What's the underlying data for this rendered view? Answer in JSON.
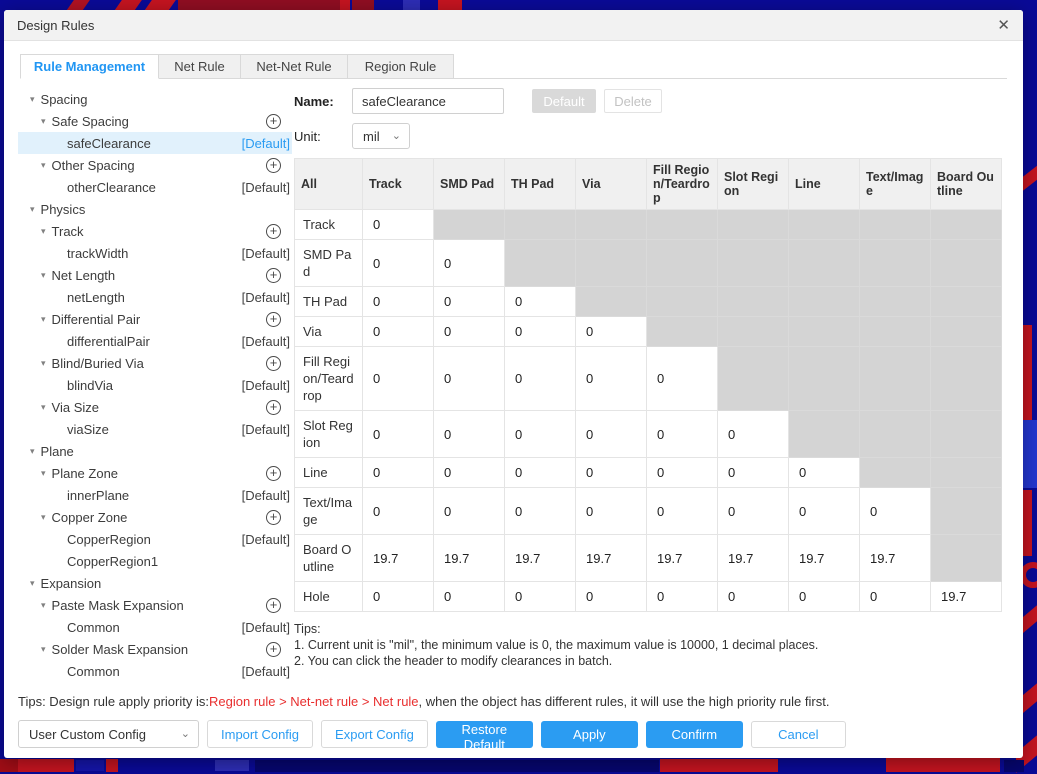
{
  "theme": {
    "accent": "#2b9cf2",
    "active_tab_text": "#2196f3",
    "selected_row_bg": "#e1f1fc",
    "disabled_cell_bg": "#d4d4d4",
    "warning_red": "#e82e2e",
    "background_navy": "#0a0a96",
    "background_red": "#c41420"
  },
  "icons": {
    "close": "✕",
    "add": "+",
    "collapse": "▾",
    "chevron_down": "⌄"
  },
  "window": {
    "title": "Design Rules"
  },
  "tabs": [
    {
      "label": "Rule Management",
      "active": true
    },
    {
      "label": "Net Rule",
      "active": false
    },
    {
      "label": "Net-Net Rule",
      "active": false
    },
    {
      "label": "Region Rule",
      "active": false
    }
  ],
  "tree": {
    "items": [
      {
        "label": "Spacing",
        "level": 1,
        "group": true
      },
      {
        "label": "Safe Spacing",
        "level": 2,
        "group": true,
        "add": true
      },
      {
        "label": "safeClearance",
        "level": 3,
        "badge": "[Default]",
        "selected": true
      },
      {
        "label": "Other Spacing",
        "level": 2,
        "group": true,
        "add": true
      },
      {
        "label": "otherClearance",
        "level": 3,
        "badge": "[Default]"
      },
      {
        "label": "Physics",
        "level": 1,
        "group": true
      },
      {
        "label": "Track",
        "level": 2,
        "group": true,
        "add": true
      },
      {
        "label": "trackWidth",
        "level": 3,
        "badge": "[Default]"
      },
      {
        "label": "Net Length",
        "level": 2,
        "group": true,
        "add": true
      },
      {
        "label": "netLength",
        "level": 3,
        "badge": "[Default]"
      },
      {
        "label": "Differential Pair",
        "level": 2,
        "group": true,
        "add": true
      },
      {
        "label": "differentialPair",
        "level": 3,
        "badge": "[Default]"
      },
      {
        "label": "Blind/Buried Via",
        "level": 2,
        "group": true,
        "add": true
      },
      {
        "label": "blindVia",
        "level": 3,
        "badge": "[Default]"
      },
      {
        "label": "Via Size",
        "level": 2,
        "group": true,
        "add": true
      },
      {
        "label": "viaSize",
        "level": 3,
        "badge": "[Default]"
      },
      {
        "label": "Plane",
        "level": 1,
        "group": true
      },
      {
        "label": "Plane Zone",
        "level": 2,
        "group": true,
        "add": true
      },
      {
        "label": "innerPlane",
        "level": 3,
        "badge": "[Default]"
      },
      {
        "label": "Copper Zone",
        "level": 2,
        "group": true,
        "add": true
      },
      {
        "label": "CopperRegion",
        "level": 3,
        "badge": "[Default]"
      },
      {
        "label": "CopperRegion1",
        "level": 3
      },
      {
        "label": "Expansion",
        "level": 1,
        "group": true
      },
      {
        "label": "Paste Mask Expansion",
        "level": 2,
        "group": true,
        "add": true
      },
      {
        "label": "Common",
        "level": 3,
        "badge": "[Default]"
      },
      {
        "label": "Solder Mask Expansion",
        "level": 2,
        "group": true,
        "add": true
      },
      {
        "label": "Common",
        "level": 3,
        "badge": "[Default]"
      }
    ]
  },
  "form": {
    "name_label": "Name:",
    "name_value": "safeClearance",
    "default_button": "Default",
    "delete_button": "Delete",
    "unit_label": "Unit:",
    "unit_value": "mil"
  },
  "matrix": {
    "columns": [
      "All",
      "Track",
      "SMD Pad",
      "TH Pad",
      "Via",
      "Fill Region/Teardrop",
      "Slot Region",
      "Line",
      "Text/Image",
      "Board Outline"
    ],
    "rows": [
      {
        "label": "Track",
        "values": [
          "0"
        ]
      },
      {
        "label": "SMD Pad",
        "values": [
          "0",
          "0"
        ]
      },
      {
        "label": "TH Pad",
        "values": [
          "0",
          "0",
          "0"
        ]
      },
      {
        "label": "Via",
        "values": [
          "0",
          "0",
          "0",
          "0"
        ]
      },
      {
        "label": "Fill Region/Teardrop",
        "values": [
          "0",
          "0",
          "0",
          "0",
          "0"
        ]
      },
      {
        "label": "Slot Region",
        "values": [
          "0",
          "0",
          "0",
          "0",
          "0",
          "0"
        ]
      },
      {
        "label": "Line",
        "values": [
          "0",
          "0",
          "0",
          "0",
          "0",
          "0",
          "0"
        ]
      },
      {
        "label": "Text/Image",
        "values": [
          "0",
          "0",
          "0",
          "0",
          "0",
          "0",
          "0",
          "0"
        ]
      },
      {
        "label": "Board Outline",
        "values": [
          "19.7",
          "19.7",
          "19.7",
          "19.7",
          "19.7",
          "19.7",
          "19.7",
          "19.7"
        ]
      },
      {
        "label": "Hole",
        "values": [
          "0",
          "0",
          "0",
          "0",
          "0",
          "0",
          "0",
          "0",
          "19.7"
        ]
      }
    ]
  },
  "tips": {
    "title": "Tips:",
    "lines": [
      "1. Current unit is \"mil\", the minimum value is 0, the maximum value is 10000, 1 decimal places.",
      "2. You can click the header to modify clearances in batch."
    ]
  },
  "footer": {
    "tips_prefix": "Tips: Design rule apply priority is:",
    "tips_highlight": "Region rule > Net-net rule > Net rule",
    "tips_suffix": ", when the object has different rules, it will use the high priority rule first.",
    "config_select": "User Custom Config",
    "import_button": "Import Config",
    "export_button": "Export Config",
    "restore_button": "Restore Default",
    "apply_button": "Apply",
    "confirm_button": "Confirm",
    "cancel_button": "Cancel"
  }
}
